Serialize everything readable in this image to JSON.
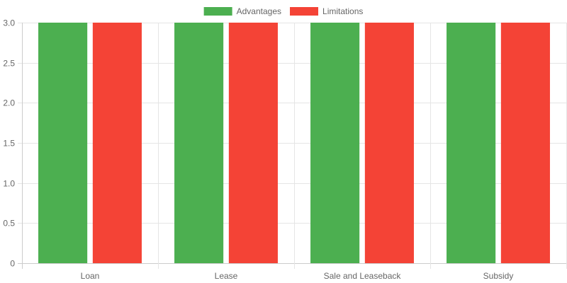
{
  "chart_data": {
    "type": "bar",
    "categories": [
      "Loan",
      "Lease",
      "Sale and Leaseback",
      "Subsidy"
    ],
    "series": [
      {
        "name": "Advantages",
        "color": "#4caf50",
        "values": [
          3,
          3,
          3,
          3
        ]
      },
      {
        "name": "Limitations",
        "color": "#f44336",
        "values": [
          3,
          3,
          3,
          3
        ]
      }
    ],
    "ylim": [
      0,
      3
    ],
    "yticks": [
      "0",
      "0.5",
      "1.0",
      "1.5",
      "2.0",
      "2.5",
      "3.0"
    ],
    "ytick_values": [
      0,
      0.5,
      1,
      1.5,
      2,
      2.5,
      3
    ],
    "grid": true,
    "legend_position": "top-center",
    "colors": {
      "grid": "#e5e5e5",
      "axis": "#cccccc",
      "tick_text": "#666666"
    }
  }
}
